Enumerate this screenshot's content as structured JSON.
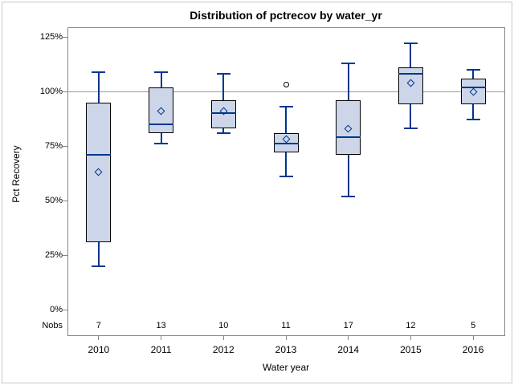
{
  "window": {
    "background": "#ffffff",
    "border_color": "#c9c9c9"
  },
  "chart_data": {
    "type": "box",
    "title": "Distribution of pctrecov by water_yr",
    "xlabel": "Water year",
    "ylabel": "Pct Recovery",
    "ylim": [
      0,
      125
    ],
    "yticks": [
      0,
      25,
      50,
      75,
      100,
      125
    ],
    "ytick_suffix": "%",
    "reference_line": 100,
    "grid": false,
    "legend": "none",
    "nobs_label": "Nobs",
    "boxes": [
      {
        "year": "2010",
        "nobs": 7,
        "whisker_low": 20,
        "q1": 31,
        "median": 71,
        "mean": 63,
        "q3": 95,
        "whisker_high": 109,
        "outliers": []
      },
      {
        "year": "2011",
        "nobs": 13,
        "whisker_low": 76,
        "q1": 81,
        "median": 85,
        "mean": 91,
        "q3": 102,
        "whisker_high": 109,
        "outliers": []
      },
      {
        "year": "2012",
        "nobs": 10,
        "whisker_low": 81,
        "q1": 83,
        "median": 90,
        "mean": 91,
        "q3": 96,
        "whisker_high": 108,
        "outliers": []
      },
      {
        "year": "2013",
        "nobs": 11,
        "whisker_low": 61,
        "q1": 72,
        "median": 76,
        "mean": 78,
        "q3": 81,
        "whisker_high": 93,
        "outliers": [
          103
        ]
      },
      {
        "year": "2014",
        "nobs": 17,
        "whisker_low": 52,
        "q1": 71,
        "median": 79,
        "mean": 83,
        "q3": 96,
        "whisker_high": 113,
        "outliers": []
      },
      {
        "year": "2015",
        "nobs": 12,
        "whisker_low": 83,
        "q1": 94,
        "median": 108,
        "mean": 104,
        "q3": 111,
        "whisker_high": 122,
        "outliers": []
      },
      {
        "year": "2016",
        "nobs": 5,
        "whisker_low": 87,
        "q1": 94,
        "median": 102,
        "mean": 100,
        "q3": 106,
        "whisker_high": 110,
        "outliers": []
      }
    ],
    "colors": {
      "box_fill": "#ccd6e8",
      "box_border": "#000000",
      "whisker": "#00368f",
      "median": "#00368f",
      "mean_marker": "#00368f",
      "outlier": "#000000",
      "frame": "#868686",
      "reference_line": "#9a9a9a",
      "text": "#000000"
    }
  }
}
